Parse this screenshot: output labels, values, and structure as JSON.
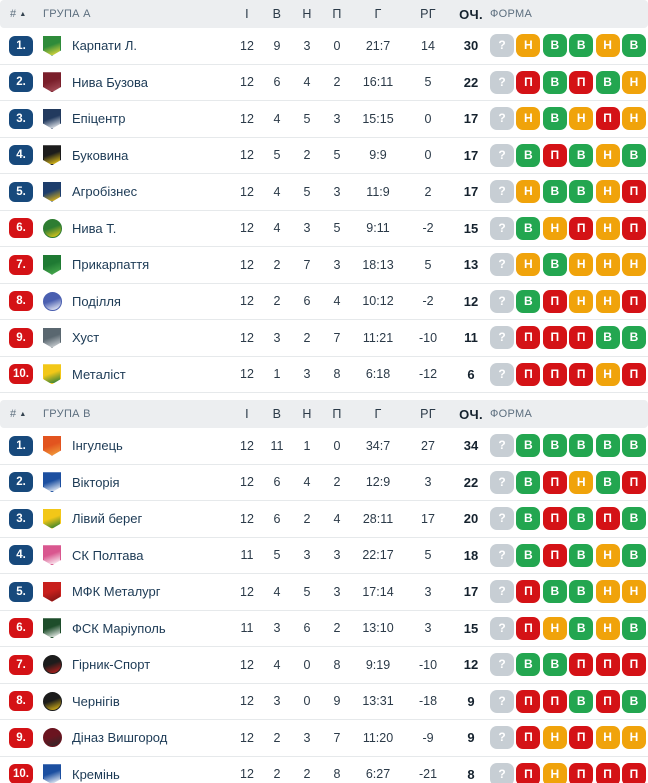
{
  "columns": {
    "pos": "#",
    "sort_arrow": "▲",
    "games": "І",
    "wins": "В",
    "draws": "Н",
    "losses": "П",
    "goals": "Г",
    "goal_diff": "РГ",
    "points": "ОЧ.",
    "form": "ФОРМА"
  },
  "form_legend": {
    "win": "В",
    "draw": "Н",
    "loss": "П",
    "unknown": "?"
  },
  "colors": {
    "position_badge_top": "#17497c",
    "position_badge_bottom": "#d41216",
    "form_win": "#23a650",
    "form_draw": "#f0a30b",
    "form_loss": "#d41216",
    "form_unknown": "#c7ced4",
    "header_bg": "#eceef0",
    "header_text": "#5c6e7e",
    "team_text": "#1c3a55",
    "row_border": "#e6e9eb"
  },
  "groups": [
    {
      "title": "ГРУПА А",
      "rows": [
        {
          "pos": "1.",
          "zone": "blue",
          "team": "Карпати Л.",
          "games": "12",
          "wins": "9",
          "draws": "3",
          "losses": "0",
          "goals": "21:7",
          "gd": "14",
          "points": "30",
          "form": [
            "?",
            "Н",
            "В",
            "В",
            "Н",
            "В"
          ],
          "logo": {
            "shape": "shield",
            "c1": "#2e8b3a",
            "c2": "#f2e13c"
          }
        },
        {
          "pos": "2.",
          "zone": "blue",
          "team": "Нива Бузова",
          "games": "12",
          "wins": "6",
          "draws": "4",
          "losses": "2",
          "goals": "16:11",
          "gd": "5",
          "points": "22",
          "form": [
            "?",
            "П",
            "В",
            "П",
            "В",
            "Н"
          ],
          "logo": {
            "shape": "shield",
            "c1": "#7a1f2b",
            "c2": "#a8515c"
          }
        },
        {
          "pos": "3.",
          "zone": "blue",
          "team": "Епіцентр",
          "games": "12",
          "wins": "4",
          "draws": "5",
          "losses": "3",
          "goals": "15:15",
          "gd": "0",
          "points": "17",
          "form": [
            "?",
            "Н",
            "В",
            "Н",
            "П",
            "Н"
          ],
          "logo": {
            "shape": "shield",
            "c1": "#223a5e",
            "c2": "#ffffff"
          }
        },
        {
          "pos": "4.",
          "zone": "blue",
          "team": "Буковина",
          "games": "12",
          "wins": "5",
          "draws": "2",
          "losses": "5",
          "goals": "9:9",
          "gd": "0",
          "points": "17",
          "form": [
            "?",
            "В",
            "П",
            "В",
            "Н",
            "В"
          ],
          "logo": {
            "shape": "shield",
            "c1": "#1c1c1c",
            "c2": "#f7d117"
          }
        },
        {
          "pos": "5.",
          "zone": "blue",
          "team": "Агробізнес",
          "games": "12",
          "wins": "4",
          "draws": "5",
          "losses": "3",
          "goals": "11:9",
          "gd": "2",
          "points": "17",
          "form": [
            "?",
            "Н",
            "В",
            "В",
            "Н",
            "П"
          ],
          "logo": {
            "shape": "shield",
            "c1": "#1d3d6b",
            "c2": "#f4c20d"
          }
        },
        {
          "pos": "6.",
          "zone": "red",
          "team": "Нива Т.",
          "games": "12",
          "wins": "4",
          "draws": "3",
          "losses": "5",
          "goals": "9:11",
          "gd": "-2",
          "points": "15",
          "form": [
            "?",
            "В",
            "Н",
            "П",
            "Н",
            "П"
          ],
          "logo": {
            "shape": "circle",
            "c1": "#2e7d32",
            "c2": "#f7d117"
          }
        },
        {
          "pos": "7.",
          "zone": "red",
          "team": "Прикарпаття",
          "games": "12",
          "wins": "2",
          "draws": "7",
          "losses": "3",
          "goals": "18:13",
          "gd": "5",
          "points": "13",
          "form": [
            "?",
            "Н",
            "В",
            "Н",
            "Н",
            "Н"
          ],
          "logo": {
            "shape": "shield",
            "c1": "#1f7a33",
            "c2": "#4caf50"
          }
        },
        {
          "pos": "8.",
          "zone": "red",
          "team": "Поділля",
          "games": "12",
          "wins": "2",
          "draws": "6",
          "losses": "4",
          "goals": "10:12",
          "gd": "-2",
          "points": "12",
          "form": [
            "?",
            "В",
            "П",
            "Н",
            "Н",
            "П"
          ],
          "logo": {
            "shape": "circle",
            "c1": "#4a5fb0",
            "c2": "#ffffff"
          }
        },
        {
          "pos": "9.",
          "zone": "red",
          "team": "Хуст",
          "games": "12",
          "wins": "3",
          "draws": "2",
          "losses": "7",
          "goals": "11:21",
          "gd": "-10",
          "points": "11",
          "form": [
            "?",
            "П",
            "П",
            "П",
            "В",
            "В"
          ],
          "logo": {
            "shape": "shield",
            "c1": "#5a6770",
            "c2": "#d9dde0"
          }
        },
        {
          "pos": "10.",
          "zone": "red",
          "team": "Металіст",
          "games": "12",
          "wins": "1",
          "draws": "3",
          "losses": "8",
          "goals": "6:18",
          "gd": "-12",
          "points": "6",
          "form": [
            "?",
            "П",
            "П",
            "П",
            "Н",
            "П"
          ],
          "logo": {
            "shape": "shield",
            "c1": "#f2c718",
            "c2": "#1e7a3c"
          }
        }
      ]
    },
    {
      "title": "ГРУПА В",
      "rows": [
        {
          "pos": "1.",
          "zone": "blue",
          "team": "Інгулець",
          "games": "12",
          "wins": "11",
          "draws": "1",
          "losses": "0",
          "goals": "34:7",
          "gd": "27",
          "points": "34",
          "form": [
            "?",
            "В",
            "В",
            "В",
            "В",
            "В"
          ],
          "logo": {
            "shape": "shield",
            "c1": "#e2541f",
            "c2": "#f2a33c"
          }
        },
        {
          "pos": "2.",
          "zone": "blue",
          "team": "Вікторія",
          "games": "12",
          "wins": "6",
          "draws": "4",
          "losses": "2",
          "goals": "12:9",
          "gd": "3",
          "points": "22",
          "form": [
            "?",
            "В",
            "П",
            "Н",
            "В",
            "П"
          ],
          "logo": {
            "shape": "shield",
            "c1": "#1c4fa0",
            "c2": "#ffffff"
          }
        },
        {
          "pos": "3.",
          "zone": "blue",
          "team": "Лівий берег",
          "games": "12",
          "wins": "6",
          "draws": "2",
          "losses": "4",
          "goals": "28:11",
          "gd": "17",
          "points": "20",
          "form": [
            "?",
            "В",
            "П",
            "В",
            "П",
            "В"
          ],
          "logo": {
            "shape": "shield",
            "c1": "#f2c718",
            "c2": "#1f7a33"
          }
        },
        {
          "pos": "4.",
          "zone": "blue",
          "team": "СК Полтава",
          "games": "11",
          "wins": "5",
          "draws": "3",
          "losses": "3",
          "goals": "22:17",
          "gd": "5",
          "points": "18",
          "form": [
            "?",
            "В",
            "П",
            "В",
            "Н",
            "В"
          ],
          "logo": {
            "shape": "shield",
            "c1": "#d9578f",
            "c2": "#ffffff"
          }
        },
        {
          "pos": "5.",
          "zone": "blue",
          "team": "МФК Металург",
          "games": "12",
          "wins": "4",
          "draws": "5",
          "losses": "3",
          "goals": "17:14",
          "gd": "3",
          "points": "17",
          "form": [
            "?",
            "П",
            "В",
            "В",
            "Н",
            "Н"
          ],
          "logo": {
            "shape": "shield",
            "c1": "#c8201d",
            "c2": "#7a1414"
          }
        },
        {
          "pos": "6.",
          "zone": "red",
          "team": "ФСК Маріуполь",
          "games": "11",
          "wins": "3",
          "draws": "6",
          "losses": "2",
          "goals": "13:10",
          "gd": "3",
          "points": "15",
          "form": [
            "?",
            "П",
            "Н",
            "В",
            "Н",
            "В"
          ],
          "logo": {
            "shape": "shield",
            "c1": "#1e4d2b",
            "c2": "#ffffff"
          }
        },
        {
          "pos": "7.",
          "zone": "red",
          "team": "Гірник-Спорт",
          "games": "12",
          "wins": "4",
          "draws": "0",
          "losses": "8",
          "goals": "9:19",
          "gd": "-10",
          "points": "12",
          "form": [
            "?",
            "В",
            "В",
            "П",
            "П",
            "П"
          ],
          "logo": {
            "shape": "circle",
            "c1": "#1c1c1c",
            "c2": "#c8201d"
          }
        },
        {
          "pos": "8.",
          "zone": "red",
          "team": "Чернігів",
          "games": "12",
          "wins": "3",
          "draws": "0",
          "losses": "9",
          "goals": "13:31",
          "gd": "-18",
          "points": "9",
          "form": [
            "?",
            "П",
            "П",
            "В",
            "П",
            "В"
          ],
          "logo": {
            "shape": "circle",
            "c1": "#1c1c1c",
            "c2": "#f2c718"
          }
        },
        {
          "pos": "9.",
          "zone": "red",
          "team": "Діназ Вишгород",
          "games": "12",
          "wins": "2",
          "draws": "3",
          "losses": "7",
          "goals": "11:20",
          "gd": "-9",
          "points": "9",
          "form": [
            "?",
            "П",
            "Н",
            "П",
            "Н",
            "Н"
          ],
          "logo": {
            "shape": "circle",
            "c1": "#6b1420",
            "c2": "#2a2a2a"
          }
        },
        {
          "pos": "10.",
          "zone": "red",
          "team": "Кремінь",
          "games": "12",
          "wins": "2",
          "draws": "2",
          "losses": "8",
          "goals": "6:27",
          "gd": "-21",
          "points": "8",
          "form": [
            "?",
            "П",
            "Н",
            "П",
            "П",
            "П"
          ],
          "logo": {
            "shape": "shield",
            "c1": "#1c4fa0",
            "c2": "#ffffff"
          }
        }
      ]
    }
  ]
}
